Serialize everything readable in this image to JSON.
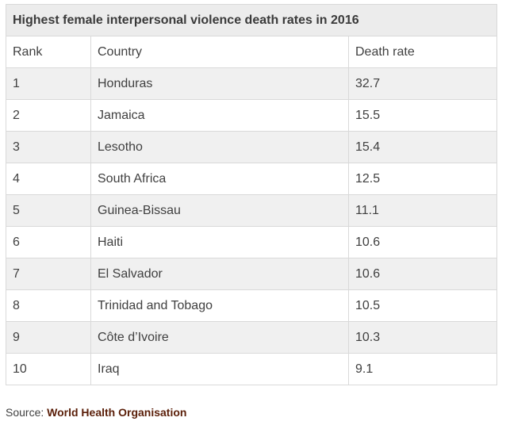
{
  "table": {
    "title": "Highest female interpersonal violence death rates in 2016",
    "headers": [
      "Rank",
      "Country",
      "Death rate"
    ],
    "rows": [
      [
        "1",
        "Honduras",
        "32.7"
      ],
      [
        "2",
        "Jamaica",
        "15.5"
      ],
      [
        "3",
        "Lesotho",
        "15.4"
      ],
      [
        "4",
        "South Africa",
        "12.5"
      ],
      [
        "5",
        "Guinea-Bissau",
        "11.1"
      ],
      [
        "6",
        "Haiti",
        "10.6"
      ],
      [
        "7",
        "El Salvador",
        "10.6"
      ],
      [
        "8",
        "Trinidad and Tobago",
        "10.5"
      ],
      [
        "9",
        "Côte d’Ivoire",
        "10.3"
      ],
      [
        "10",
        "Iraq",
        "9.1"
      ]
    ]
  },
  "source": {
    "prefix": "Source:",
    "link_text": "World Health Organisation"
  }
}
